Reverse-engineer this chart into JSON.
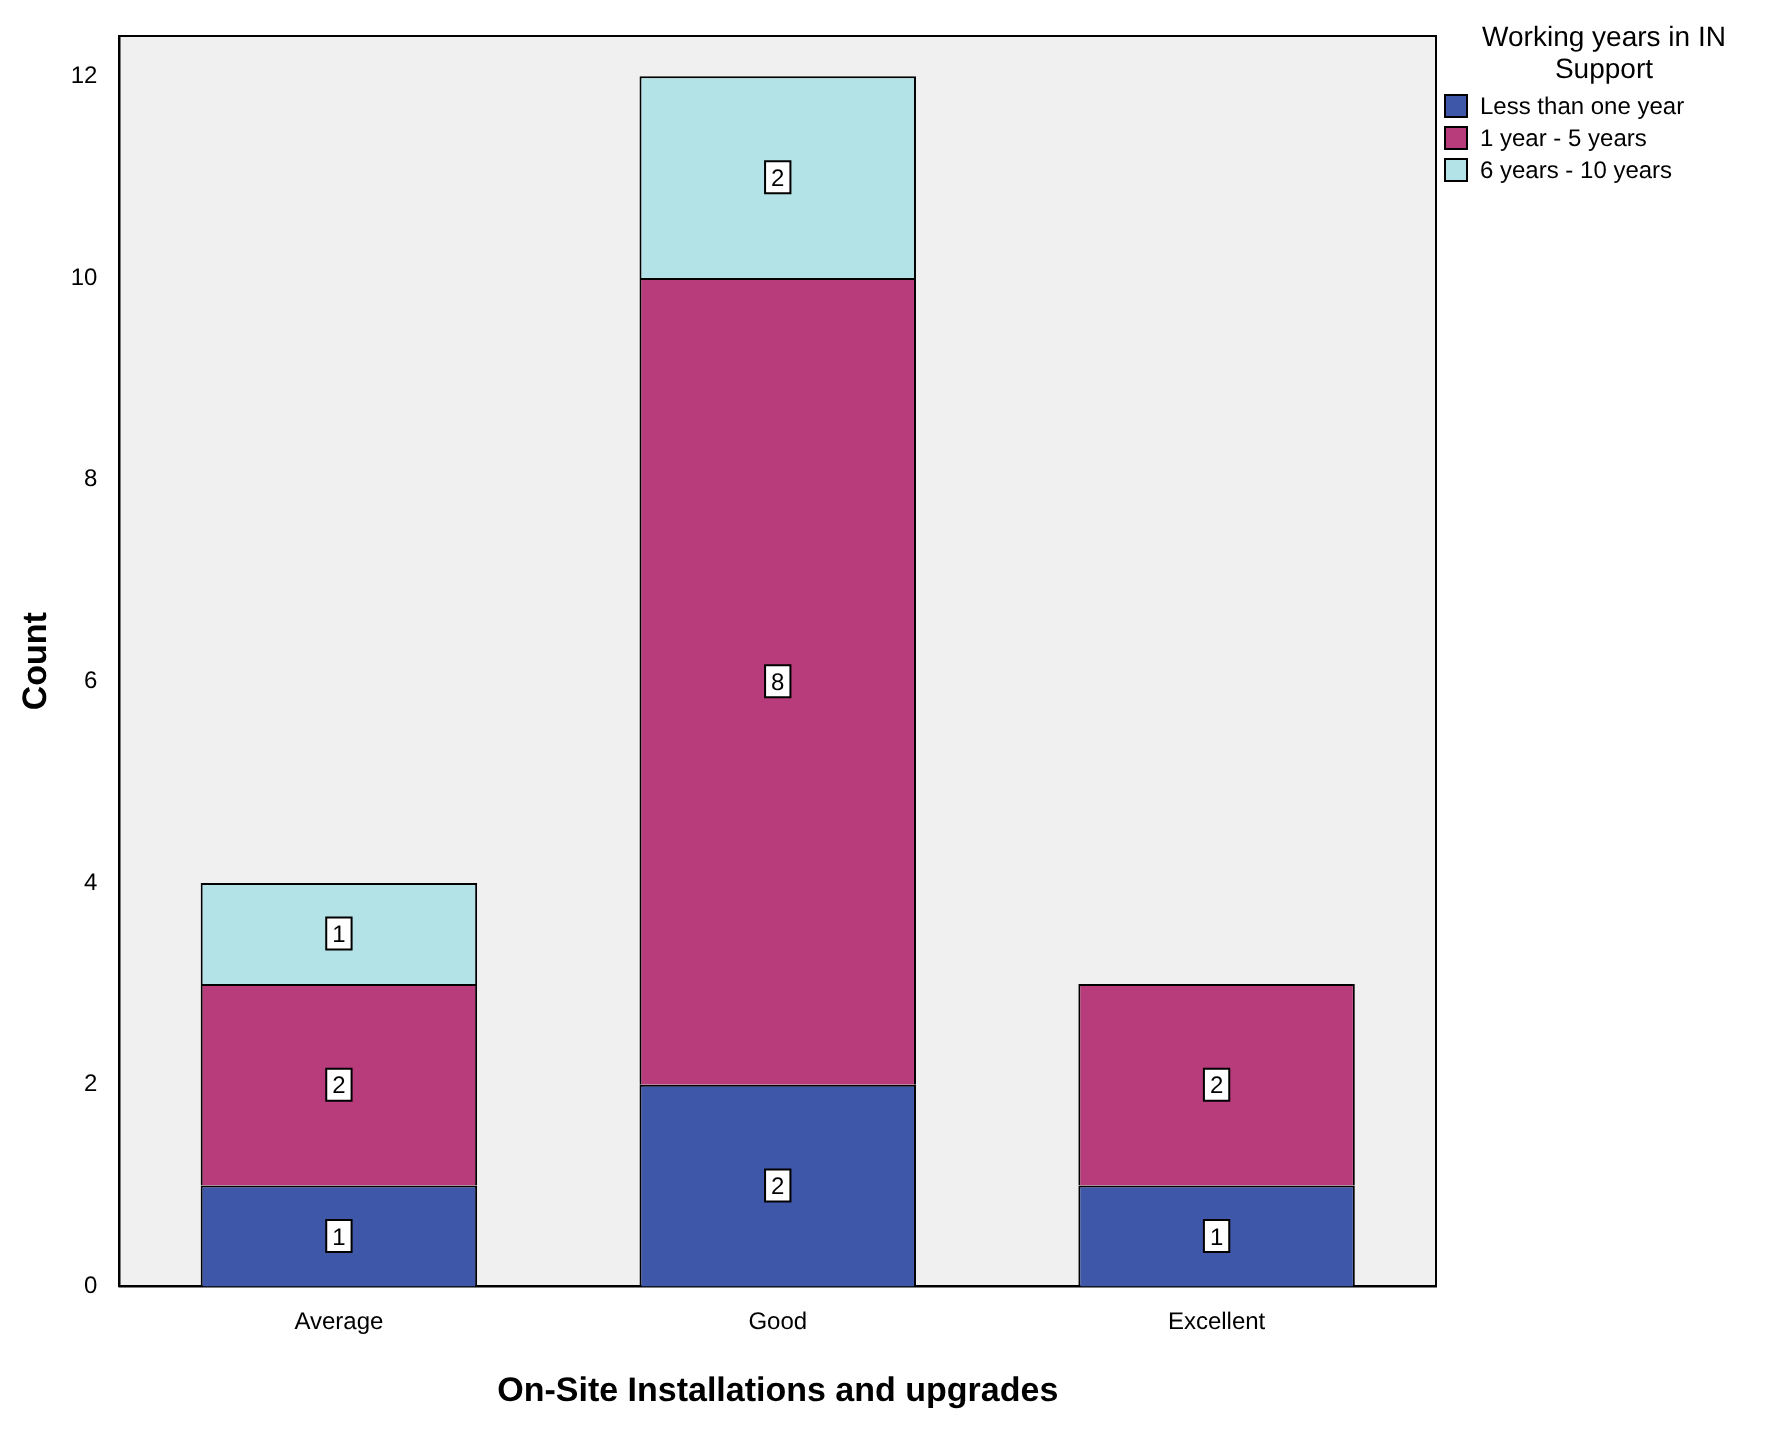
{
  "chart_data": {
    "type": "bar",
    "stacked": true,
    "xlabel": "On-Site Installations and upgrades",
    "ylabel": "Count",
    "legend_title": "Working years in IN Support",
    "legend": "top right",
    "grid": false,
    "data_labels": true,
    "categories": [
      "Average",
      "Good",
      "Excellent"
    ],
    "ylim": [
      0,
      12.4
    ],
    "yticks": [
      0,
      2,
      4,
      6,
      8,
      10,
      12
    ],
    "series": [
      {
        "name": "Less than one year",
        "color": "#3f57a8",
        "values": [
          1,
          2,
          1
        ]
      },
      {
        "name": "1 year - 5 years",
        "color": "#b83c7c",
        "values": [
          2,
          8,
          2
        ]
      },
      {
        "name": "6 years - 10 years",
        "color": "#b3e3e6",
        "values": [
          1,
          2,
          null
        ]
      }
    ]
  }
}
